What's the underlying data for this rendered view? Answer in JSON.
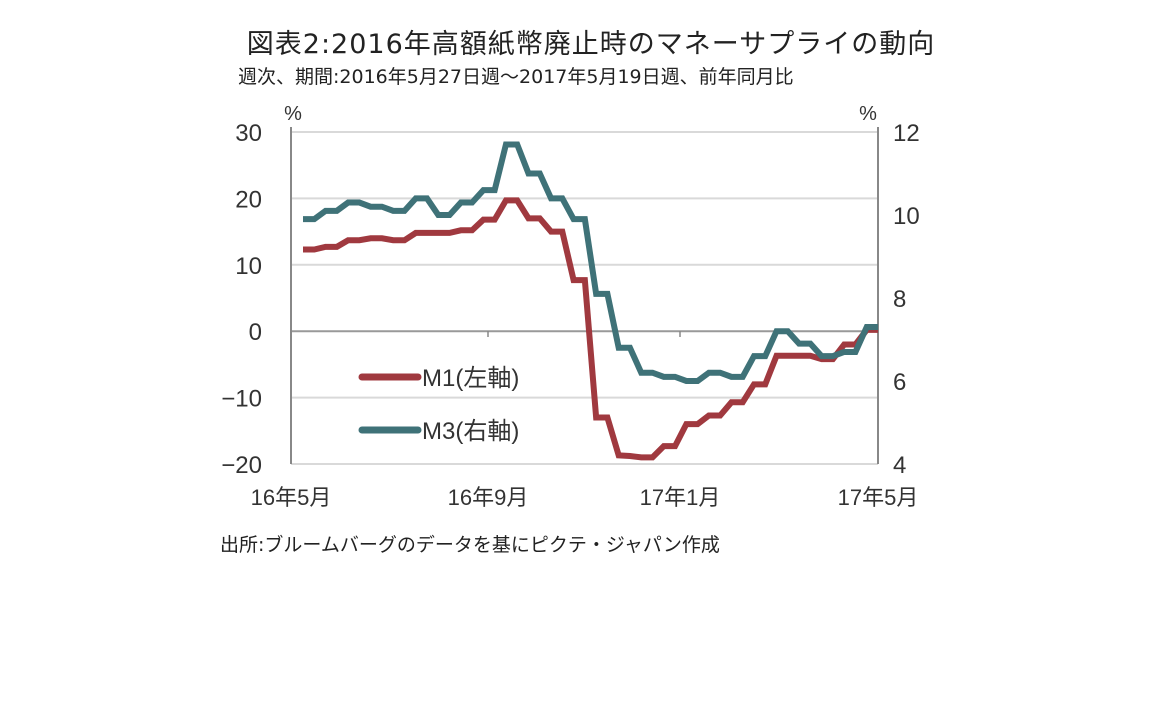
{
  "title": "図表2:2016年高額紙幣廃止時のマネーサプライの動向",
  "subtitle": "週次、期間:2016年5月27日週〜2017年5月19日週、前年同月比",
  "source": "出所:ブルームバーグのデータを基にピクテ・ジャパン作成",
  "chart_data": {
    "type": "line",
    "left_axis": {
      "unit": "%",
      "ylim": [
        -20,
        30
      ],
      "ticks": [
        "30",
        "20",
        "10",
        "0",
        "−10",
        "−20"
      ],
      "values": [
        30,
        20,
        10,
        0,
        -10,
        -20
      ]
    },
    "right_axis": {
      "unit": "%",
      "ylim": [
        4,
        12
      ],
      "ticks": [
        "12",
        "10",
        "8",
        "6",
        "4"
      ],
      "values": [
        12,
        10,
        8,
        6,
        4
      ]
    },
    "x_tick_labels": [
      "16年5月",
      "16年9月",
      "17年1月",
      "17年5月"
    ],
    "grid": true,
    "legend_placement": "center-left",
    "series": [
      {
        "name": "M1(左軸)",
        "axis": "left",
        "color": "#a0393f",
        "values": [
          12.3,
          12.3,
          12.7,
          12.7,
          13.7,
          13.7,
          14.0,
          14.0,
          13.7,
          13.7,
          14.8,
          14.8,
          14.8,
          14.8,
          15.2,
          15.2,
          16.8,
          16.8,
          19.7,
          19.7,
          17.0,
          17.0,
          15.0,
          15.0,
          7.7,
          7.7,
          -13.0,
          -13.0,
          -18.7,
          -18.8,
          -19.0,
          -19.0,
          -17.3,
          -17.3,
          -14.0,
          -14.0,
          -12.7,
          -12.7,
          -10.7,
          -10.7,
          -8.0,
          -8.0,
          -3.7,
          -3.7,
          -3.7,
          -3.7,
          -4.2,
          -4.2,
          -2.0,
          -2.0,
          0.2,
          0.2
        ]
      },
      {
        "name": "M3(右軸)",
        "axis": "right",
        "color": "#3f7278",
        "values": [
          9.9,
          9.9,
          10.1,
          10.1,
          10.3,
          10.3,
          10.2,
          10.2,
          10.1,
          10.1,
          10.4,
          10.4,
          10.0,
          10.0,
          10.3,
          10.3,
          10.6,
          10.6,
          11.7,
          11.7,
          11.0,
          11.0,
          10.4,
          10.4,
          9.9,
          9.9,
          8.1,
          8.1,
          6.8,
          6.8,
          6.2,
          6.2,
          6.1,
          6.1,
          6.0,
          6.0,
          6.2,
          6.2,
          6.1,
          6.1,
          6.6,
          6.6,
          7.2,
          7.2,
          6.9,
          6.9,
          6.6,
          6.6,
          6.7,
          6.7,
          7.3,
          7.3
        ]
      }
    ]
  }
}
